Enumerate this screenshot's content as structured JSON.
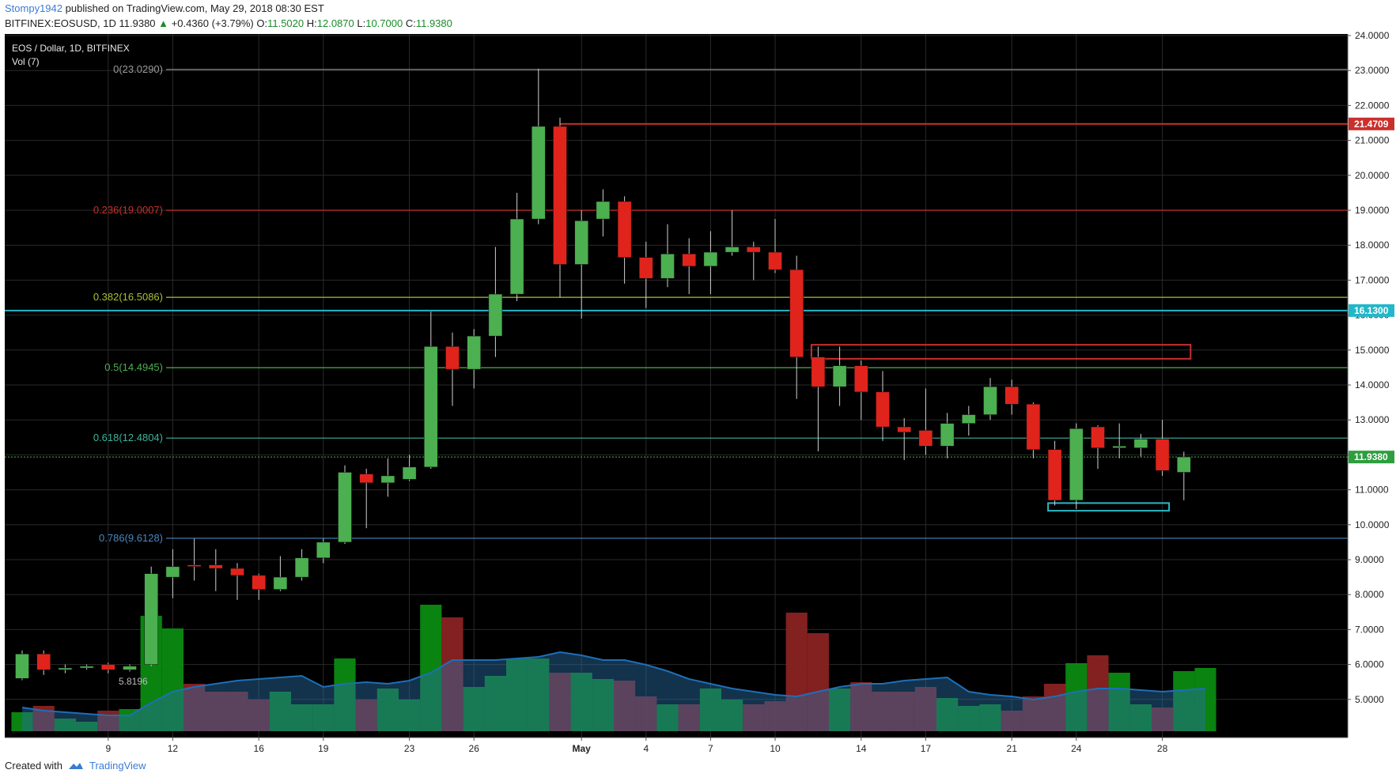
{
  "header": {
    "user": "Stompy1942",
    "published": "published on TradingView.com, May 29, 2018 08:30 EST",
    "symbol": "BITFINEX:EOSUSD, 1D",
    "last": "11.9380",
    "change": "+0.4360 (+3.79%)",
    "o_label": "O:",
    "o": "11.5020",
    "h_label": "H:",
    "h": "12.0870",
    "l_label": "L:",
    "l": "10.7000",
    "c_label": "C:",
    "c": "11.9380"
  },
  "footer": {
    "created": "Created with",
    "brand": "TradingView"
  },
  "colors": {
    "background": "#000000",
    "up": "#4caf50",
    "down": "#e0241c",
    "vol_up": "#0b8a12",
    "vol_down": "#8a2222",
    "vol_ma": "#1d6fb8",
    "grid": "#2a2a2a"
  },
  "chart_data": {
    "type": "candlestick",
    "title": "EOS / Dollar, 1D, BITFINEX",
    "subtitle": "Vol (7)",
    "price_range": [
      4.0,
      24.0
    ],
    "y_ticks": [
      "5.0000",
      "6.0000",
      "7.0000",
      "8.0000",
      "9.0000",
      "10.0000",
      "11.0000",
      "12.0000",
      "13.0000",
      "14.0000",
      "15.0000",
      "16.0000",
      "17.0000",
      "18.0000",
      "19.0000",
      "20.0000",
      "21.0000",
      "22.0000",
      "23.0000",
      "24.0000"
    ],
    "x_ticks": [
      {
        "label": "9",
        "day": "2018-04-09"
      },
      {
        "label": "12",
        "day": "2018-04-12"
      },
      {
        "label": "16",
        "day": "2018-04-16"
      },
      {
        "label": "19",
        "day": "2018-04-19"
      },
      {
        "label": "23",
        "day": "2018-04-23"
      },
      {
        "label": "26",
        "day": "2018-04-26"
      },
      {
        "label": "May",
        "day": "2018-05-01"
      },
      {
        "label": "4",
        "day": "2018-05-04"
      },
      {
        "label": "7",
        "day": "2018-05-07"
      },
      {
        "label": "10",
        "day": "2018-05-10"
      },
      {
        "label": "14",
        "day": "2018-05-14"
      },
      {
        "label": "17",
        "day": "2018-05-17"
      },
      {
        "label": "21",
        "day": "2018-05-21"
      },
      {
        "label": "24",
        "day": "2018-05-24"
      },
      {
        "label": "28",
        "day": "2018-05-28"
      }
    ],
    "candles": [
      {
        "d": "2018-04-05",
        "o": 5.6,
        "h": 6.4,
        "l": 5.55,
        "c": 6.3
      },
      {
        "d": "2018-04-06",
        "o": 6.3,
        "h": 6.4,
        "l": 5.7,
        "c": 5.85
      },
      {
        "d": "2018-04-07",
        "o": 5.85,
        "h": 6.0,
        "l": 5.75,
        "c": 5.9
      },
      {
        "d": "2018-04-08",
        "o": 5.9,
        "h": 6.0,
        "l": 5.85,
        "c": 5.95
      },
      {
        "d": "2018-04-09",
        "o": 6.0,
        "h": 6.05,
        "l": 5.75,
        "c": 5.85
      },
      {
        "d": "2018-04-10",
        "o": 5.85,
        "h": 6.0,
        "l": 5.8,
        "c": 5.95
      },
      {
        "d": "2018-04-11",
        "o": 6.0,
        "h": 8.8,
        "l": 5.95,
        "c": 8.6
      },
      {
        "d": "2018-04-12",
        "o": 8.5,
        "h": 9.3,
        "l": 7.9,
        "c": 8.8
      },
      {
        "d": "2018-04-13",
        "o": 8.85,
        "h": 9.6,
        "l": 8.4,
        "c": 8.82
      },
      {
        "d": "2018-04-14",
        "o": 8.85,
        "h": 9.3,
        "l": 8.1,
        "c": 8.75
      },
      {
        "d": "2018-04-15",
        "o": 8.75,
        "h": 8.9,
        "l": 7.85,
        "c": 8.55
      },
      {
        "d": "2018-04-16",
        "o": 8.55,
        "h": 8.6,
        "l": 7.85,
        "c": 8.15
      },
      {
        "d": "2018-04-17",
        "o": 8.15,
        "h": 9.1,
        "l": 8.1,
        "c": 8.5
      },
      {
        "d": "2018-04-18",
        "o": 8.5,
        "h": 9.3,
        "l": 8.4,
        "c": 9.05
      },
      {
        "d": "2018-04-19",
        "o": 9.05,
        "h": 9.6,
        "l": 8.9,
        "c": 9.5
      },
      {
        "d": "2018-04-20",
        "o": 9.5,
        "h": 11.7,
        "l": 9.45,
        "c": 11.5
      },
      {
        "d": "2018-04-21",
        "o": 11.45,
        "h": 11.6,
        "l": 9.9,
        "c": 11.2
      },
      {
        "d": "2018-04-22",
        "o": 11.2,
        "h": 11.9,
        "l": 10.8,
        "c": 11.4
      },
      {
        "d": "2018-04-23",
        "o": 11.3,
        "h": 12.0,
        "l": 11.25,
        "c": 11.65
      },
      {
        "d": "2018-04-24",
        "o": 11.65,
        "h": 16.1,
        "l": 11.6,
        "c": 15.1
      },
      {
        "d": "2018-04-25",
        "o": 15.1,
        "h": 15.5,
        "l": 13.4,
        "c": 14.45
      },
      {
        "d": "2018-04-26",
        "o": 14.45,
        "h": 15.6,
        "l": 13.9,
        "c": 15.4
      },
      {
        "d": "2018-04-27",
        "o": 15.4,
        "h": 17.95,
        "l": 14.8,
        "c": 16.6
      },
      {
        "d": "2018-04-28",
        "o": 16.6,
        "h": 19.5,
        "l": 16.4,
        "c": 18.75
      },
      {
        "d": "2018-04-29",
        "o": 18.75,
        "h": 23.05,
        "l": 18.6,
        "c": 21.4
      },
      {
        "d": "2018-04-30",
        "o": 21.4,
        "h": 21.65,
        "l": 16.5,
        "c": 17.45
      },
      {
        "d": "2018-05-01",
        "o": 17.45,
        "h": 19.0,
        "l": 15.9,
        "c": 18.7
      },
      {
        "d": "2018-05-02",
        "o": 18.75,
        "h": 19.6,
        "l": 18.25,
        "c": 19.25
      },
      {
        "d": "2018-05-03",
        "o": 19.25,
        "h": 19.4,
        "l": 16.9,
        "c": 17.65
      },
      {
        "d": "2018-05-04",
        "o": 17.65,
        "h": 18.1,
        "l": 16.2,
        "c": 17.05
      },
      {
        "d": "2018-05-05",
        "o": 17.05,
        "h": 18.6,
        "l": 16.8,
        "c": 17.75
      },
      {
        "d": "2018-05-06",
        "o": 17.75,
        "h": 18.2,
        "l": 16.6,
        "c": 17.4
      },
      {
        "d": "2018-05-07",
        "o": 17.4,
        "h": 18.4,
        "l": 16.6,
        "c": 17.8
      },
      {
        "d": "2018-05-08",
        "o": 17.8,
        "h": 19.0,
        "l": 17.7,
        "c": 17.95
      },
      {
        "d": "2018-05-09",
        "o": 17.95,
        "h": 18.1,
        "l": 17.0,
        "c": 17.8
      },
      {
        "d": "2018-05-10",
        "o": 17.8,
        "h": 18.75,
        "l": 17.2,
        "c": 17.3
      },
      {
        "d": "2018-05-11",
        "o": 17.3,
        "h": 17.7,
        "l": 13.6,
        "c": 14.8
      },
      {
        "d": "2018-05-12",
        "o": 14.8,
        "h": 15.1,
        "l": 12.1,
        "c": 13.95
      },
      {
        "d": "2018-05-13",
        "o": 13.95,
        "h": 15.1,
        "l": 13.4,
        "c": 14.55
      },
      {
        "d": "2018-05-14",
        "o": 14.55,
        "h": 14.7,
        "l": 13.0,
        "c": 13.8
      },
      {
        "d": "2018-05-15",
        "o": 13.8,
        "h": 14.4,
        "l": 12.4,
        "c": 12.8
      },
      {
        "d": "2018-05-16",
        "o": 12.8,
        "h": 13.05,
        "l": 11.85,
        "c": 12.65
      },
      {
        "d": "2018-05-17",
        "o": 12.7,
        "h": 13.9,
        "l": 12.0,
        "c": 12.25
      },
      {
        "d": "2018-05-18",
        "o": 12.25,
        "h": 13.2,
        "l": 11.9,
        "c": 12.9
      },
      {
        "d": "2018-05-19",
        "o": 12.9,
        "h": 13.4,
        "l": 12.55,
        "c": 13.15
      },
      {
        "d": "2018-05-20",
        "o": 13.15,
        "h": 14.2,
        "l": 13.0,
        "c": 13.95
      },
      {
        "d": "2018-05-21",
        "o": 13.95,
        "h": 14.15,
        "l": 13.15,
        "c": 13.45
      },
      {
        "d": "2018-05-22",
        "o": 13.45,
        "h": 13.5,
        "l": 11.9,
        "c": 12.15
      },
      {
        "d": "2018-05-23",
        "o": 12.15,
        "h": 12.4,
        "l": 10.55,
        "c": 10.7
      },
      {
        "d": "2018-05-24",
        "o": 10.7,
        "h": 12.9,
        "l": 10.45,
        "c": 12.75
      },
      {
        "d": "2018-05-25",
        "o": 12.8,
        "h": 12.85,
        "l": 11.6,
        "c": 12.2
      },
      {
        "d": "2018-05-26",
        "o": 12.2,
        "h": 12.9,
        "l": 11.9,
        "c": 12.25
      },
      {
        "d": "2018-05-27",
        "o": 12.2,
        "h": 12.6,
        "l": 11.95,
        "c": 12.45
      },
      {
        "d": "2018-05-28",
        "o": 12.45,
        "h": 13.0,
        "l": 11.4,
        "c": 11.55
      },
      {
        "d": "2018-05-29",
        "o": 11.5,
        "h": 12.09,
        "l": 10.7,
        "c": 11.94
      }
    ],
    "volume": {
      "unit": "relative (0-100)",
      "bars": [
        12,
        16,
        8,
        6,
        13,
        14,
        73,
        65,
        30,
        25,
        25,
        20,
        25,
        17,
        17,
        46,
        20,
        27,
        20,
        80,
        72,
        28,
        35,
        46,
        46,
        37,
        37,
        33,
        32,
        22,
        17,
        17,
        27,
        20,
        17,
        19,
        75,
        62,
        27,
        31,
        25,
        25,
        28,
        21,
        16,
        17,
        13,
        22,
        30,
        43,
        48,
        37,
        17,
        15,
        38,
        40
      ],
      "directions": [
        "u",
        "d",
        "u",
        "u",
        "d",
        "u",
        "u",
        "u",
        "d",
        "d",
        "d",
        "d",
        "u",
        "u",
        "u",
        "u",
        "d",
        "u",
        "u",
        "u",
        "d",
        "u",
        "u",
        "u",
        "u",
        "d",
        "u",
        "u",
        "d",
        "d",
        "u",
        "d",
        "u",
        "u",
        "d",
        "d",
        "d",
        "d",
        "u",
        "d",
        "d",
        "d",
        "d",
        "u",
        "u",
        "u",
        "d",
        "d",
        "d",
        "u",
        "d",
        "u",
        "u",
        "d",
        "u",
        "u"
      ],
      "ma": [
        15,
        13,
        12,
        11,
        10,
        10,
        18,
        25,
        28,
        30,
        32,
        33,
        34,
        35,
        28,
        30,
        31,
        30,
        32,
        37,
        45,
        45,
        45,
        46,
        47,
        50,
        48,
        45,
        45,
        42,
        38,
        33,
        30,
        27,
        25,
        23,
        22,
        25,
        28,
        30,
        30,
        32,
        33,
        34,
        25,
        23,
        22,
        20,
        22,
        25,
        27,
        27,
        26,
        25,
        26,
        27
      ]
    },
    "fib_levels": [
      {
        "label": "0(23.0290)",
        "price": 23.029,
        "color": "#9a9a9a"
      },
      {
        "label": "0.236(19.0007)",
        "price": 19.0007,
        "color": "#c9302c"
      },
      {
        "label": "0.382(16.5086)",
        "price": 16.5086,
        "color": "#a8c032"
      },
      {
        "label": "0.5(14.4945)",
        "price": 14.4945,
        "color": "#4caf50"
      },
      {
        "label": "0.618(12.4804)",
        "price": 12.4804,
        "color": "#3cb39a"
      },
      {
        "label": "0.786(9.6128)",
        "price": 9.6128,
        "color": "#4a87c0"
      }
    ],
    "vol_overlay_label": "5.8196",
    "price_tags": [
      {
        "label": "21.4709",
        "price": 21.4709,
        "color": "#c9302c"
      },
      {
        "label": "16.1300",
        "price": 16.13,
        "color": "#22b7c9"
      },
      {
        "label": "11.9380",
        "price": 11.938,
        "color": "#2e9e3e"
      }
    ],
    "zones": [
      {
        "from": "2018-05-12",
        "to": "2018-05-29",
        "low": 14.75,
        "high": 15.15,
        "color": "#c9302c"
      },
      {
        "from": "2018-05-23",
        "to": "2018-05-28",
        "low": 10.4,
        "high": 10.62,
        "color": "#2bb8c4"
      }
    ],
    "grid": true,
    "legend": "top-left"
  }
}
